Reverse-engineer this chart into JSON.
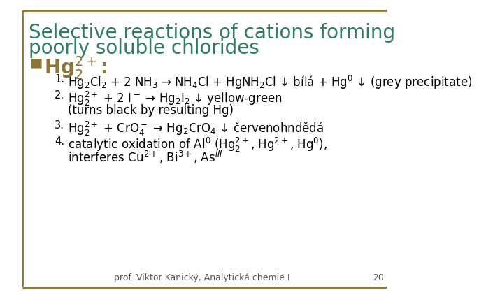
{
  "title_line1": "Selective reactions of cations forming",
  "title_line2": "poorly soluble chlorides",
  "title_color": "#2E7D5E",
  "bullet_symbol": "■",
  "bullet_label": "Hg$_2^{2+}$:",
  "bullet_color": "#8B7536",
  "items": [
    {
      "num": "1.",
      "text": "Hg$_2$Cl$_2$ + 2 NH$_3$ → NH$_4$Cl + HgNH$_2$Cl ↓ bílá + Hg$^0$ ↓ (grey precipitate)"
    },
    {
      "num": "2.",
      "text_line1": "Hg$_2^{2+}$ + 2 I$^-$ → Hg$_2$I$_2$ ↓ yellow-green",
      "text_line2": "(turns black by resulting Hg)"
    },
    {
      "num": "3.",
      "text": "Hg$_2^{2+}$ + CrO$_4^-$ → Hg$_2$CrO$_4$ ↓ červenohndědá"
    },
    {
      "num": "4.",
      "text_line1": "catalytic oxidation of Al$^0$ (Hg$_2^{2+}$, Hg$^{2+}$, Hg$^0$),",
      "text_line2": "interferes Cu$^{2+}$, Bi$^{3+}$, As$^{III}$"
    }
  ],
  "footer_text": "prof. Viktor Kanický, Analytická chemie I",
  "footer_page": "20",
  "border_color": "#8B7536",
  "background_color": "#FFFFFF",
  "text_color": "#000000"
}
